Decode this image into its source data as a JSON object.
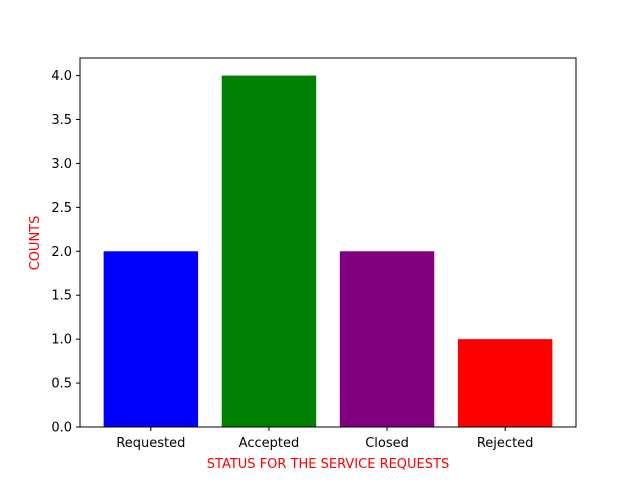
{
  "chart_data": {
    "type": "bar",
    "title": "",
    "categories": [
      "Requested",
      "Accepted",
      "Closed",
      "Rejected"
    ],
    "values": [
      2,
      4,
      2,
      1
    ],
    "colors": [
      "#0000ff",
      "#008000",
      "#800080",
      "#ff0000"
    ],
    "xlabel": "STATUS FOR THE SERVICE REQUESTS",
    "ylabel": "COUNTS",
    "label_color": "#ff0000",
    "ylim": [
      0,
      4.2
    ],
    "yticks": [
      0.0,
      0.5,
      1.0,
      1.5,
      2.0,
      2.5,
      3.0,
      3.5,
      4.0
    ],
    "ytick_labels": [
      "0.0",
      "0.5",
      "1.0",
      "1.5",
      "2.0",
      "2.5",
      "3.0",
      "3.5",
      "4.0"
    ],
    "grid": false,
    "legend": "none"
  }
}
